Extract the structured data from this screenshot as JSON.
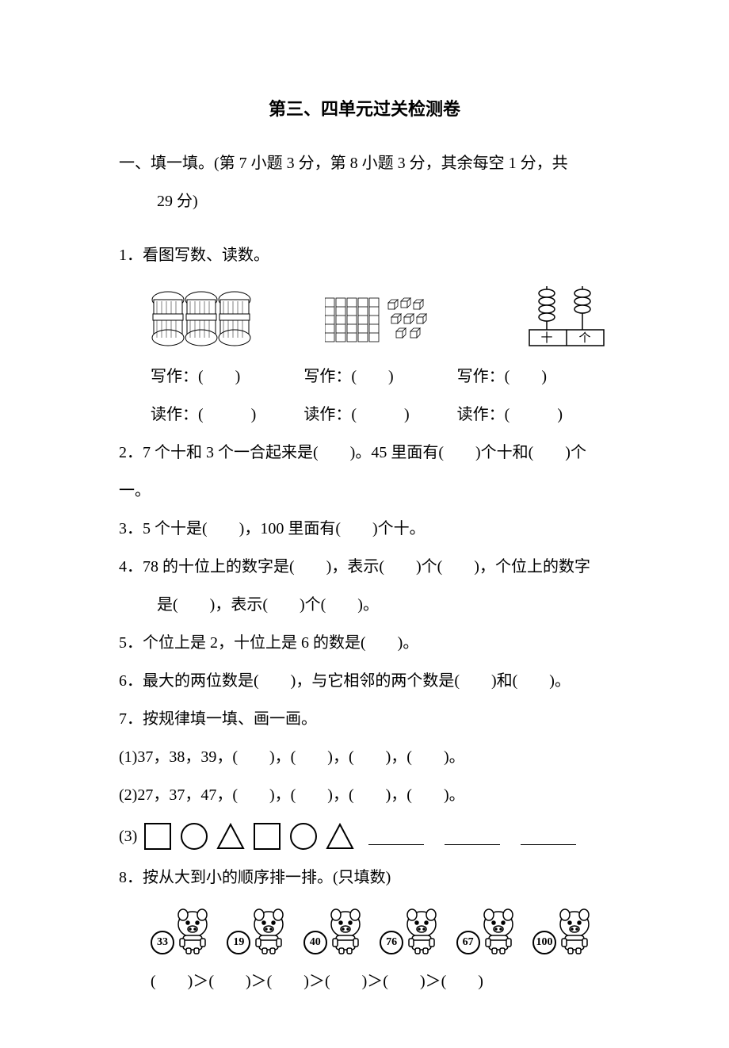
{
  "title": "第三、四单元过关检测卷",
  "section_intro_1": "一、填一填。(第 7 小题 3 分，第 8 小题 3 分，其余每空 1 分，共",
  "section_intro_2": "29 分)",
  "q1": "1．看图写数、读数。",
  "write_label": "写作：(　　)",
  "read_label": "读作：(　　　)",
  "q2": "2．7 个十和 3 个一合起来是(　　)。45 里面有(　　)个十和(　　)个一。",
  "q3": "3．5 个十是(　　)，100 里面有(　　)个十。",
  "q4_1": "4．78 的十位上的数字是(　　)，表示(　　)个(　　)，个位上的数字",
  "q4_2": "是(　　)，表示(　　)个(　　)。",
  "q5": "5．个位上是 2，十位上是 6 的数是(　　)。",
  "q6": "6．最大的两位数是(　　)，与它相邻的两个数是(　　)和(　　)。",
  "q7": "7．按规律填一填、画一画。",
  "q7_1": "(1)37，38，39，(　　)，(　　)，(　　)，(　　)。",
  "q7_2": "(2)27，37，47，(　　)，(　　)，(　　)，(　　)。",
  "q7_3_label": "(3)",
  "q8": "8．按从大到小的顺序排一排。(只填数)",
  "pigs": [
    "33",
    "19",
    "40",
    "76",
    "67",
    "100"
  ],
  "compare": "(　　)＞(　　)＞(　　)＞(　　)＞(　　)＞(　　)",
  "abacus_labels": {
    "tens": "十",
    "ones": "个"
  }
}
